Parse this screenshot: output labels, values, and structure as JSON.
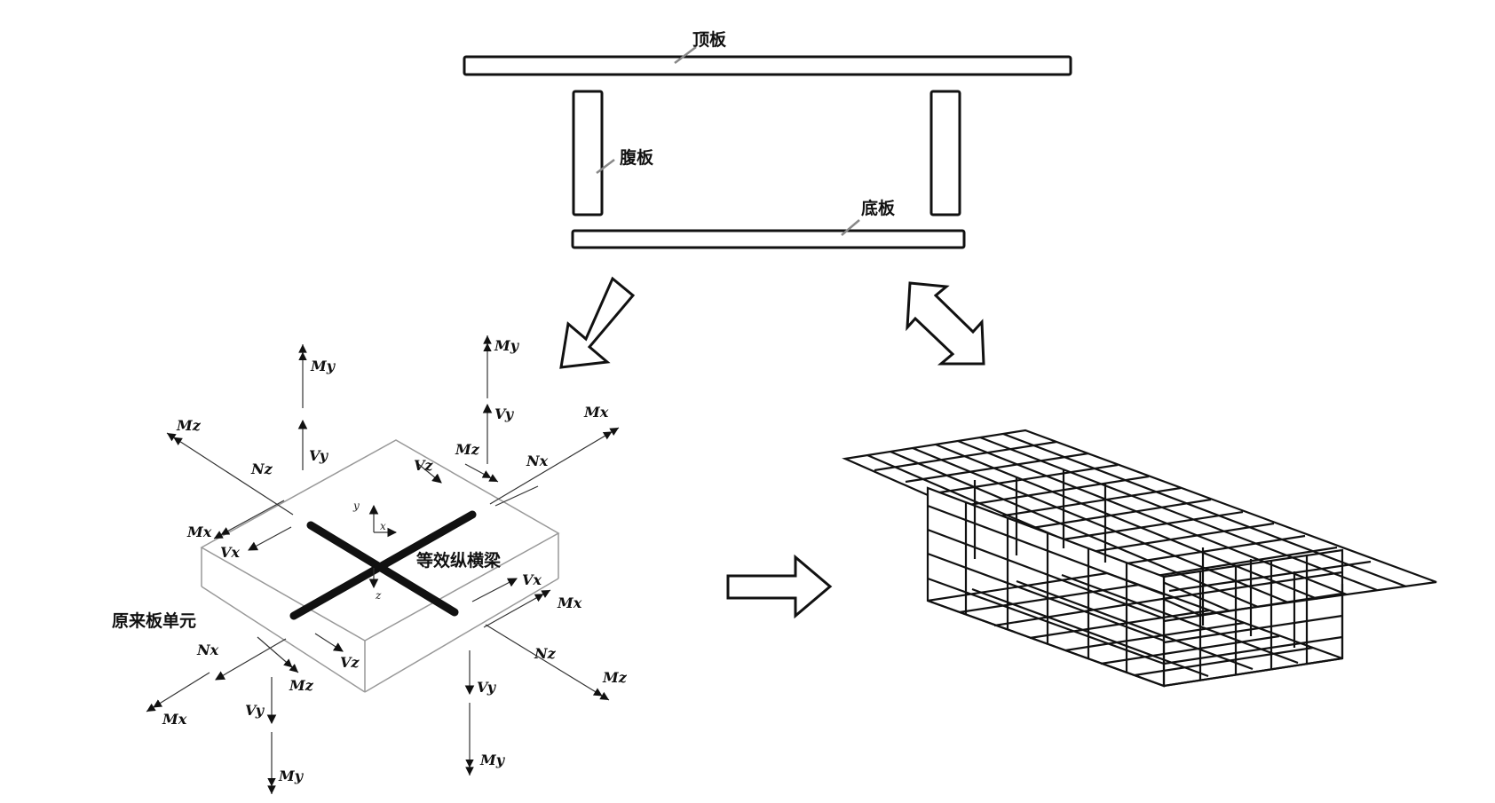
{
  "labels": {
    "top_plate": "顶板",
    "web_plate": "腹板",
    "bottom_plate": "底板",
    "equivalent_grillage": "等效纵横梁",
    "original_plate_element": "原来板单元"
  },
  "force_symbols": {
    "Mz": "Mz",
    "My": "My",
    "Mx": "Mx",
    "Vy": "Vy",
    "Vx": "Vx",
    "Vz": "Vz",
    "Nz": "Nz",
    "Nx": "Nx"
  },
  "axis_labels": {
    "x": "x",
    "y": "y",
    "z": "z"
  },
  "colors": {
    "stroke": "#111111",
    "light_stroke": "#999999",
    "background": "#ffffff"
  }
}
